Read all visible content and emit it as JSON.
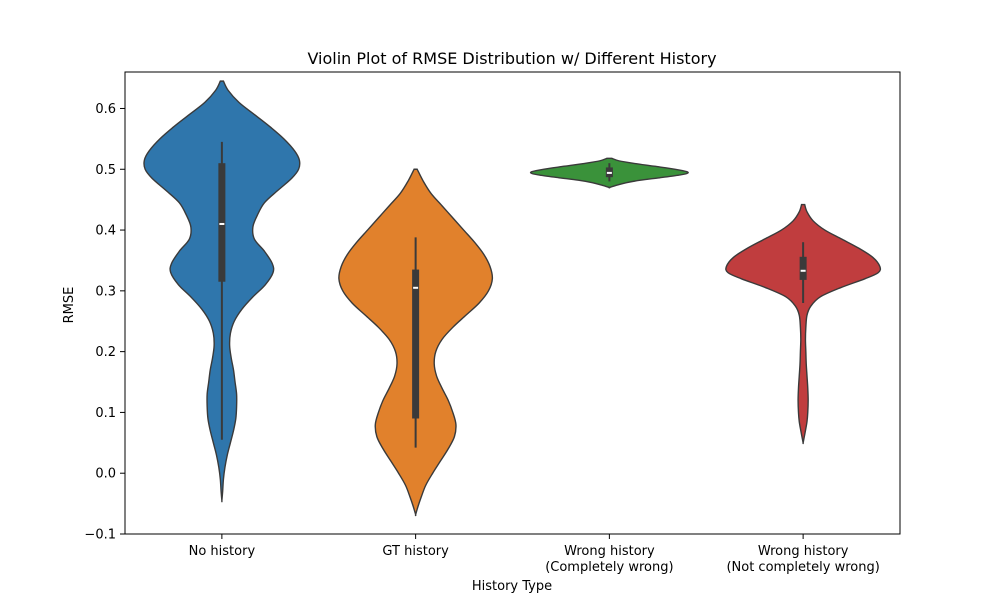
{
  "chart_data": {
    "type": "violin",
    "title": "Violin Plot of RMSE Distribution w/ Different History",
    "xlabel": "History Type",
    "ylabel": "RMSE",
    "ylim": [
      -0.1,
      0.66
    ],
    "yticks": [
      -0.1,
      0.0,
      0.1,
      0.2,
      0.3,
      0.4,
      0.5,
      0.6
    ],
    "ytick_labels": [
      "−0.1",
      "0.0",
      "0.1",
      "0.2",
      "0.3",
      "0.4",
      "0.5",
      "0.6"
    ],
    "grid": false,
    "categories": [
      {
        "label": [
          "No history"
        ],
        "color": "#2f76ac",
        "quartiles": {
          "q1": 0.315,
          "median": 0.41,
          "q3": 0.51
        },
        "whiskers": [
          0.055,
          0.545
        ],
        "density_range": [
          -0.045,
          0.645
        ],
        "density": [
          [
            0.645,
            0.02
          ],
          [
            0.63,
            0.08
          ],
          [
            0.61,
            0.22
          ],
          [
            0.59,
            0.42
          ],
          [
            0.57,
            0.62
          ],
          [
            0.55,
            0.8
          ],
          [
            0.53,
            0.94
          ],
          [
            0.515,
            1.0
          ],
          [
            0.5,
            0.99
          ],
          [
            0.485,
            0.9
          ],
          [
            0.465,
            0.72
          ],
          [
            0.445,
            0.55
          ],
          [
            0.425,
            0.46
          ],
          [
            0.405,
            0.4
          ],
          [
            0.385,
            0.42
          ],
          [
            0.365,
            0.55
          ],
          [
            0.345,
            0.65
          ],
          [
            0.33,
            0.66
          ],
          [
            0.31,
            0.56
          ],
          [
            0.29,
            0.4
          ],
          [
            0.27,
            0.26
          ],
          [
            0.25,
            0.16
          ],
          [
            0.23,
            0.11
          ],
          [
            0.21,
            0.1
          ],
          [
            0.19,
            0.12
          ],
          [
            0.17,
            0.15
          ],
          [
            0.15,
            0.17
          ],
          [
            0.13,
            0.19
          ],
          [
            0.11,
            0.19
          ],
          [
            0.09,
            0.18
          ],
          [
            0.07,
            0.15
          ],
          [
            0.05,
            0.11
          ],
          [
            0.03,
            0.07
          ],
          [
            0.01,
            0.04
          ],
          [
            -0.01,
            0.02
          ],
          [
            -0.03,
            0.01
          ],
          [
            -0.045,
            0.0
          ]
        ]
      },
      {
        "label": [
          "GT history"
        ],
        "color": "#e1812c",
        "quartiles": {
          "q1": 0.09,
          "median": 0.305,
          "q3": 0.335
        },
        "whiskers": [
          0.042,
          0.388
        ],
        "density_range": [
          -0.068,
          0.5
        ],
        "density": [
          [
            0.5,
            0.02
          ],
          [
            0.48,
            0.1
          ],
          [
            0.46,
            0.2
          ],
          [
            0.44,
            0.34
          ],
          [
            0.42,
            0.48
          ],
          [
            0.4,
            0.62
          ],
          [
            0.38,
            0.76
          ],
          [
            0.36,
            0.88
          ],
          [
            0.34,
            0.96
          ],
          [
            0.32,
            0.99
          ],
          [
            0.3,
            0.94
          ],
          [
            0.28,
            0.82
          ],
          [
            0.26,
            0.65
          ],
          [
            0.24,
            0.48
          ],
          [
            0.22,
            0.34
          ],
          [
            0.2,
            0.26
          ],
          [
            0.18,
            0.24
          ],
          [
            0.16,
            0.27
          ],
          [
            0.14,
            0.34
          ],
          [
            0.12,
            0.42
          ],
          [
            0.1,
            0.48
          ],
          [
            0.08,
            0.52
          ],
          [
            0.06,
            0.5
          ],
          [
            0.04,
            0.42
          ],
          [
            0.02,
            0.32
          ],
          [
            0.0,
            0.22
          ],
          [
            -0.02,
            0.13
          ],
          [
            -0.04,
            0.07
          ],
          [
            -0.055,
            0.03
          ],
          [
            -0.068,
            0.0
          ]
        ]
      },
      {
        "label": [
          "Wrong history",
          "(Completely wrong)"
        ],
        "color": "#3a923a",
        "quartiles": {
          "q1": 0.487,
          "median": 0.494,
          "q3": 0.503
        },
        "whiskers": [
          0.48,
          0.51
        ],
        "density_range": [
          0.47,
          0.518
        ],
        "density": [
          [
            0.518,
            0.03
          ],
          [
            0.514,
            0.12
          ],
          [
            0.51,
            0.3
          ],
          [
            0.505,
            0.58
          ],
          [
            0.5,
            0.85
          ],
          [
            0.496,
            1.0
          ],
          [
            0.493,
            1.0
          ],
          [
            0.49,
            0.88
          ],
          [
            0.486,
            0.65
          ],
          [
            0.482,
            0.4
          ],
          [
            0.478,
            0.22
          ],
          [
            0.474,
            0.1
          ],
          [
            0.47,
            0.0
          ]
        ]
      },
      {
        "label": [
          "Wrong history",
          "(Not completely wrong)"
        ],
        "color": "#c03d3e",
        "quartiles": {
          "q1": 0.318,
          "median": 0.333,
          "q3": 0.356
        },
        "whiskers": [
          0.28,
          0.38
        ],
        "density_range": [
          0.05,
          0.442
        ],
        "density": [
          [
            0.442,
            0.02
          ],
          [
            0.43,
            0.05
          ],
          [
            0.415,
            0.13
          ],
          [
            0.4,
            0.28
          ],
          [
            0.385,
            0.5
          ],
          [
            0.37,
            0.72
          ],
          [
            0.355,
            0.9
          ],
          [
            0.34,
            0.99
          ],
          [
            0.33,
            0.97
          ],
          [
            0.32,
            0.8
          ],
          [
            0.305,
            0.48
          ],
          [
            0.29,
            0.22
          ],
          [
            0.275,
            0.1
          ],
          [
            0.26,
            0.05
          ],
          [
            0.24,
            0.035
          ],
          [
            0.22,
            0.03
          ],
          [
            0.2,
            0.035
          ],
          [
            0.18,
            0.04
          ],
          [
            0.16,
            0.05
          ],
          [
            0.14,
            0.06
          ],
          [
            0.12,
            0.065
          ],
          [
            0.1,
            0.06
          ],
          [
            0.085,
            0.05
          ],
          [
            0.07,
            0.03
          ],
          [
            0.06,
            0.015
          ],
          [
            0.05,
            0.0
          ]
        ]
      }
    ]
  }
}
